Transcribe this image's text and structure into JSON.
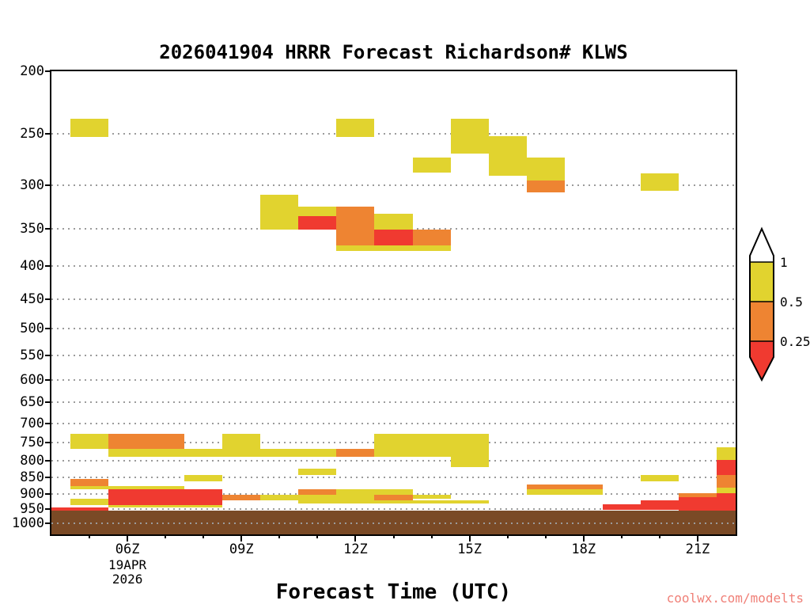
{
  "watermark": "coolwx.com/modelts",
  "chart_data": {
    "type": "heatmap",
    "title": "2026041904 HRRR Forecast Richardson# KLWS",
    "xlabel": "Forecast Time (UTC)",
    "ylabel": "",
    "variable": "Richardson number (time-height cross section)",
    "grid": "horizontal dotted lines at each pressure tick",
    "legend_position": "right",
    "x_axis": {
      "unit": "hour UTC",
      "range": [
        4,
        22
      ],
      "major_ticks": [
        {
          "hour": 6,
          "label": "06Z"
        },
        {
          "hour": 9,
          "label": "09Z"
        },
        {
          "hour": 12,
          "label": "12Z"
        },
        {
          "hour": 15,
          "label": "15Z"
        },
        {
          "hour": 18,
          "label": "18Z"
        },
        {
          "hour": 21,
          "label": "21Z"
        }
      ],
      "minor_tick_every_hours": 1,
      "date_lines": [
        "19APR",
        "2026"
      ],
      "date_under_hour": 6
    },
    "y_axis": {
      "unit": "hPa",
      "scale": "log",
      "range": [
        200,
        1040
      ],
      "ticks": [
        200,
        250,
        300,
        350,
        400,
        450,
        500,
        550,
        600,
        650,
        700,
        750,
        800,
        850,
        900,
        950,
        1000
      ]
    },
    "colorbar": {
      "boundaries": [
        "1",
        "0.5",
        "0.25"
      ],
      "segment_colors": [
        "#ffffff",
        "#e1d32f",
        "#ee8432",
        "#f03a30"
      ],
      "value_bins": {
        "white": "> 1",
        "yellow": "0.5 to 1",
        "orange": "0.25 to 0.5",
        "red": "< 0.25"
      }
    },
    "colors": {
      "y": "#e1d32f",
      "o": "#ee8432",
      "r": "#f03a30",
      "terrain": "#7a4a26"
    },
    "terrain_top_hpa": 955,
    "blocks": [
      [
        4.5,
        5.5,
        237,
        253,
        "y"
      ],
      [
        11.5,
        12.5,
        237,
        253,
        "y"
      ],
      [
        14.5,
        15.5,
        237,
        268,
        "y"
      ],
      [
        15.5,
        16.5,
        252,
        290,
        "y"
      ],
      [
        13.5,
        14.5,
        272,
        287,
        "y"
      ],
      [
        16.5,
        17.5,
        272,
        295,
        "y"
      ],
      [
        16.5,
        17.5,
        295,
        308,
        "o"
      ],
      [
        19.5,
        20.5,
        288,
        306,
        "y"
      ],
      [
        9.5,
        10.5,
        310,
        351,
        "y"
      ],
      [
        10.5,
        11.5,
        324,
        335,
        "y"
      ],
      [
        10.5,
        11.5,
        335,
        351,
        "r"
      ],
      [
        11.5,
        12.5,
        324,
        372,
        "o"
      ],
      [
        12.5,
        13.5,
        332,
        351,
        "y"
      ],
      [
        12.5,
        13.5,
        351,
        372,
        "r"
      ],
      [
        13.5,
        14.5,
        351,
        372,
        "o"
      ],
      [
        11.5,
        14.5,
        372,
        379,
        "y"
      ],
      [
        4.5,
        5.5,
        727,
        767,
        "y"
      ],
      [
        5.5,
        7.5,
        727,
        767,
        "o"
      ],
      [
        8.5,
        9.5,
        727,
        767,
        "y"
      ],
      [
        5.5,
        11.5,
        767,
        790,
        "y"
      ],
      [
        11.5,
        12.5,
        767,
        790,
        "o"
      ],
      [
        12.5,
        14.5,
        727,
        790,
        "y"
      ],
      [
        14.5,
        15.5,
        727,
        818,
        "y"
      ],
      [
        10.5,
        11.5,
        823,
        843,
        "y"
      ],
      [
        7.5,
        8.5,
        842,
        862,
        "y"
      ],
      [
        19.5,
        20.5,
        842,
        862,
        "y"
      ],
      [
        4.5,
        5.5,
        855,
        875,
        "o"
      ],
      [
        4.5,
        7.5,
        875,
        886,
        "y"
      ],
      [
        4.5,
        5.5,
        915,
        937,
        "y"
      ],
      [
        5.5,
        8.5,
        886,
        937,
        "r"
      ],
      [
        5.5,
        8.5,
        937,
        945,
        "y"
      ],
      [
        8.5,
        9.5,
        903,
        921,
        "o"
      ],
      [
        9.5,
        10.5,
        903,
        921,
        "y"
      ],
      [
        10.5,
        11.5,
        886,
        903,
        "o"
      ],
      [
        10.5,
        11.5,
        903,
        921,
        "y"
      ],
      [
        11.5,
        12.5,
        886,
        921,
        "y"
      ],
      [
        12.5,
        13.5,
        886,
        903,
        "y"
      ],
      [
        12.5,
        13.5,
        903,
        921,
        "o"
      ],
      [
        13.5,
        14.5,
        903,
        916,
        "y"
      ],
      [
        10.5,
        15.5,
        921,
        933,
        "y"
      ],
      [
        4,
        5.5,
        945,
        955,
        "r"
      ],
      [
        16.5,
        18.5,
        871,
        886,
        "o"
      ],
      [
        16.5,
        18.5,
        886,
        903,
        "y"
      ],
      [
        18.5,
        19.5,
        934,
        952,
        "r"
      ],
      [
        19.5,
        20.5,
        922,
        952,
        "r"
      ],
      [
        20.5,
        21.5,
        897,
        912,
        "o"
      ],
      [
        20.5,
        21.5,
        912,
        955,
        "r"
      ],
      [
        21.5,
        22,
        762,
        797,
        "y"
      ],
      [
        21.5,
        22,
        797,
        842,
        "r"
      ],
      [
        21.5,
        22,
        842,
        880,
        "o"
      ],
      [
        21.5,
        22,
        880,
        897,
        "y"
      ],
      [
        21.5,
        22,
        897,
        955,
        "r"
      ]
    ]
  }
}
